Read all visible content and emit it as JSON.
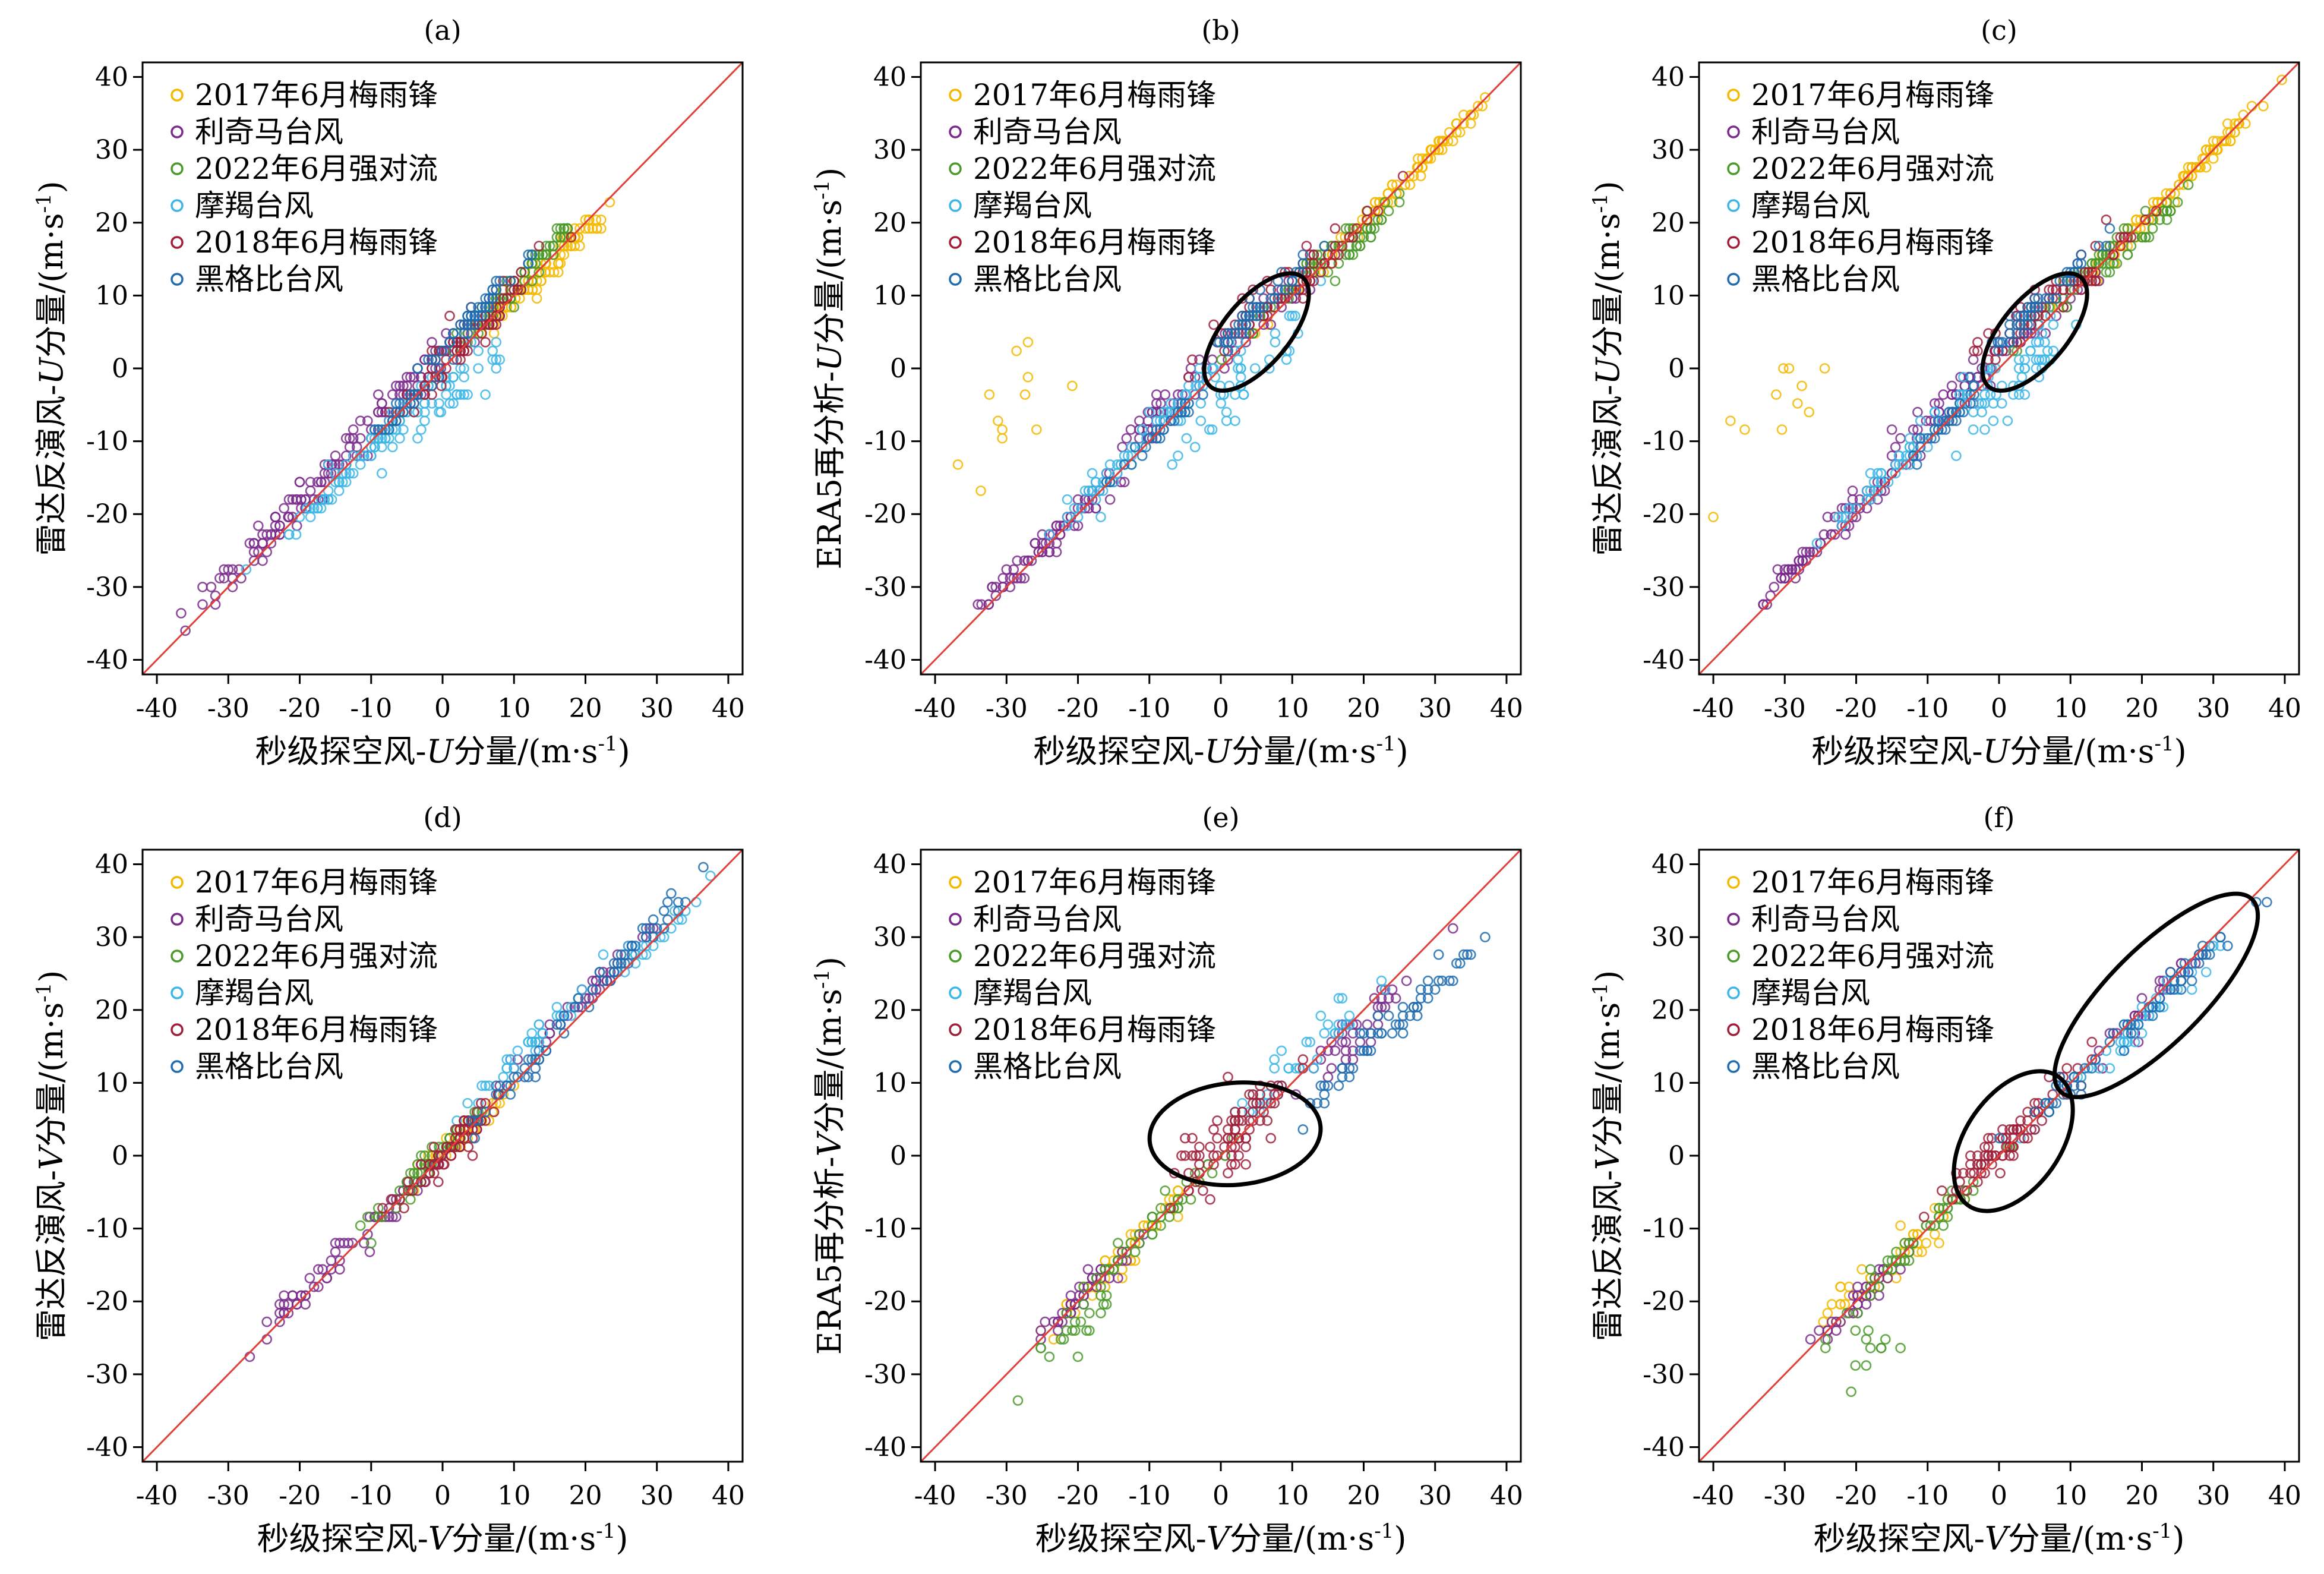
{
  "chart_data": [
    {
      "type": "scatter",
      "title": "(a)",
      "xlabel": "秒级探空风-U分量/(m·s⁻¹)",
      "ylabel": "雷达反演风-U分量/(m·s⁻¹)",
      "xlim": [
        -42,
        42
      ],
      "ylim": [
        -42,
        42
      ],
      "xticks": [
        -40,
        -30,
        -20,
        -10,
        0,
        10,
        20,
        30,
        40
      ],
      "yticks": [
        -40,
        -30,
        -20,
        -10,
        0,
        10,
        20,
        30,
        40
      ],
      "diagonal": true,
      "legend_placement": "top-left",
      "ellipses": [],
      "series": [
        {
          "name": "2017年6月梅雨锋",
          "clusters": [
            [
              10,
              10,
              3,
              0.7,
              0.6,
              40
            ],
            [
              15,
              14,
              4,
              0.75,
              0.6,
              40
            ],
            [
              18,
              18,
              2,
              0.6,
              0.5,
              30
            ]
          ]
        },
        {
          "name": "利奇马台风",
          "clusters": [
            [
              -25,
              -24,
              5,
              0.7,
              0.6,
              60
            ],
            [
              -15,
              -13,
              4,
              0.7,
              0.5,
              40
            ],
            [
              -5,
              -3,
              4,
              0.6,
              0.5,
              40
            ],
            [
              3,
              5,
              3,
              0.7,
              0.5,
              30
            ]
          ]
        },
        {
          "name": "2022年6月强对流",
          "clusters": [
            [
              8,
              9,
              4,
              0.8,
              0.5,
              50
            ],
            [
              14,
              16,
              3,
              0.8,
              0.5,
              40
            ]
          ]
        },
        {
          "name": "摩羯台风",
          "clusters": [
            [
              -14,
              -15,
              5,
              0.85,
              0.5,
              50
            ],
            [
              -6,
              -6,
              4,
              0.8,
              0.5,
              40
            ],
            [
              2,
              -3,
              4,
              0.6,
              0.5,
              40
            ]
          ]
        },
        {
          "name": "2018年6月梅雨锋",
          "clusters": [
            [
              5,
              6,
              4,
              0.7,
              0.5,
              60
            ],
            [
              -3,
              -3,
              4,
              0.7,
              0.5,
              30
            ]
          ]
        },
        {
          "name": "黑格比台风",
          "clusters": [
            [
              5,
              8,
              4,
              0.8,
              0.5,
              50
            ],
            [
              -5,
              -5,
              3,
              0.8,
              0.5,
              30
            ]
          ]
        }
      ]
    },
    {
      "type": "scatter",
      "title": "(b)",
      "xlabel": "秒级探空风-U分量/(m·s⁻¹)",
      "ylabel": "ERA5再分析-U分量/(m·s⁻¹)",
      "xlim": [
        -42,
        42
      ],
      "ylim": [
        -42,
        42
      ],
      "xticks": [
        -40,
        -30,
        -20,
        -10,
        0,
        10,
        20,
        30,
        40
      ],
      "yticks": [
        -40,
        -30,
        -20,
        -10,
        0,
        10,
        20,
        30,
        40
      ],
      "diagonal": true,
      "legend_placement": "top-left",
      "ellipses": [
        {
          "cx": 5,
          "cy": 5,
          "rx": 10,
          "ry": 4.5,
          "angle": 50
        }
      ],
      "series": [
        {
          "name": "2017年6月梅雨锋",
          "clusters": [
            [
              22,
              22,
              6,
              0.9,
              0.6,
              80
            ],
            [
              30,
              30,
              3,
              0.8,
              0.5,
              30
            ],
            [
              -30,
              -6,
              4,
              0,
              0.2,
              12
            ]
          ]
        },
        {
          "name": "利奇马台风",
          "clusters": [
            [
              -28,
              -27,
              3,
              0.8,
              0.5,
              40
            ],
            [
              -20,
              -20,
              4,
              0.7,
              0.5,
              40
            ],
            [
              -8,
              -5,
              4,
              0.6,
              0.6,
              40
            ],
            [
              5,
              6,
              4,
              0.7,
              0.5,
              30
            ]
          ]
        },
        {
          "name": "2022年6月强对流",
          "clusters": [
            [
              12,
              13,
              4,
              0.85,
              0.5,
              50
            ],
            [
              20,
              18,
              3,
              0.8,
              0.5,
              30
            ]
          ]
        },
        {
          "name": "摩羯台风",
          "clusters": [
            [
              -15,
              -14,
              4,
              0.8,
              0.5,
              40
            ],
            [
              2,
              -2,
              5,
              0.5,
              0.4,
              50
            ],
            [
              -5,
              -4,
              3,
              0.7,
              0.5,
              30
            ]
          ]
        },
        {
          "name": "2018年6月梅雨锋",
          "clusters": [
            [
              5,
              8,
              4,
              0.6,
              0.5,
              50
            ],
            [
              15,
              15,
              4,
              0.8,
              0.5,
              30
            ]
          ]
        },
        {
          "name": "黑格比台风",
          "clusters": [
            [
              5,
              8,
              4,
              0.8,
              0.5,
              50
            ],
            [
              -8,
              -8,
              3,
              0.8,
              0.5,
              30
            ]
          ]
        }
      ]
    },
    {
      "type": "scatter",
      "title": "(c)",
      "xlabel": "秒级探空风-U分量/(m·s⁻¹)",
      "ylabel": "雷达反演风-U分量/(m·s⁻¹)",
      "xlim": [
        -42,
        42
      ],
      "ylim": [
        -42,
        42
      ],
      "xticks": [
        -40,
        -30,
        -20,
        -10,
        0,
        10,
        20,
        30,
        40
      ],
      "yticks": [
        -40,
        -30,
        -20,
        -10,
        0,
        10,
        20,
        30,
        40
      ],
      "diagonal": true,
      "legend_placement": "top-left",
      "ellipses": [
        {
          "cx": 5,
          "cy": 5,
          "rx": 10,
          "ry": 4.5,
          "angle": 50
        }
      ],
      "series": [
        {
          "name": "2017年6月梅雨锋",
          "clusters": [
            [
              22,
              22,
              6,
              0.9,
              0.6,
              80
            ],
            [
              30,
              30,
              3,
              0.8,
              0.5,
              30
            ],
            [
              -30,
              -6,
              4,
              0,
              0.2,
              12
            ]
          ]
        },
        {
          "name": "利奇马台风",
          "clusters": [
            [
              -28,
              -27,
              3,
              0.8,
              0.5,
              40
            ],
            [
              -20,
              -19,
              4,
              0.7,
              0.5,
              40
            ],
            [
              -8,
              -5,
              4,
              0.6,
              0.6,
              40
            ],
            [
              5,
              6,
              4,
              0.7,
              0.5,
              30
            ]
          ]
        },
        {
          "name": "2022年6月强对流",
          "clusters": [
            [
              12,
              13,
              4,
              0.85,
              0.5,
              50
            ],
            [
              20,
              18,
              3,
              0.8,
              0.5,
              30
            ]
          ]
        },
        {
          "name": "摩羯台风",
          "clusters": [
            [
              -15,
              -14,
              4,
              0.8,
              0.5,
              40
            ],
            [
              2,
              -2,
              5,
              0.5,
              0.4,
              50
            ],
            [
              -5,
              -4,
              3,
              0.7,
              0.5,
              30
            ]
          ]
        },
        {
          "name": "2018年6月梅雨锋",
          "clusters": [
            [
              5,
              8,
              4,
              0.6,
              0.5,
              50
            ],
            [
              15,
              15,
              4,
              0.8,
              0.5,
              30
            ]
          ]
        },
        {
          "name": "黑格比台风",
          "clusters": [
            [
              5,
              8,
              4,
              0.8,
              0.5,
              50
            ],
            [
              -8,
              -8,
              3,
              0.8,
              0.5,
              30
            ]
          ]
        }
      ]
    },
    {
      "type": "scatter",
      "title": "(d)",
      "xlabel": "秒级探空风-V分量/(m·s⁻¹)",
      "ylabel": "雷达反演风-V分量/(m·s⁻¹)",
      "xlim": [
        -42,
        42
      ],
      "ylim": [
        -42,
        42
      ],
      "xticks": [
        -40,
        -30,
        -20,
        -10,
        0,
        10,
        20,
        30,
        40
      ],
      "yticks": [
        -40,
        -30,
        -20,
        -10,
        0,
        10,
        20,
        30,
        40
      ],
      "diagonal": true,
      "legend_placement": "top-left",
      "ellipses": [],
      "series": [
        {
          "name": "2017年6月梅雨锋",
          "clusters": [
            [
              2,
              2,
              3,
              0.7,
              0.5,
              50
            ]
          ]
        },
        {
          "name": "利奇马台风",
          "clusters": [
            [
              -18,
              -17,
              4,
              0.7,
              0.6,
              40
            ],
            [
              20,
              22,
              5,
              0.85,
              0.5,
              40
            ],
            [
              -6,
              -6,
              3,
              0.7,
              0.5,
              30
            ]
          ]
        },
        {
          "name": "2022年6月强对流",
          "clusters": [
            [
              -3,
              -2,
              4,
              0.8,
              0.5,
              50
            ]
          ]
        },
        {
          "name": "摩羯台风",
          "clusters": [
            [
              12,
              15,
              5,
              0.8,
              0.5,
              40
            ],
            [
              28,
              28,
              3,
              0.8,
              0.5,
              20
            ]
          ]
        },
        {
          "name": "2018年6月梅雨锋",
          "clusters": [
            [
              1,
              1,
              4,
              0.7,
              0.6,
              80
            ]
          ]
        },
        {
          "name": "黑格比台风",
          "clusters": [
            [
              25,
              27,
              5,
              0.8,
              0.5,
              40
            ],
            [
              10,
              10,
              3,
              0.7,
              0.5,
              30
            ]
          ]
        }
      ]
    },
    {
      "type": "scatter",
      "title": "(e)",
      "xlabel": "秒级探空风-V分量/(m·s⁻¹)",
      "ylabel": "ERA5再分析-V分量/(m·s⁻¹)",
      "xlim": [
        -42,
        42
      ],
      "ylim": [
        -42,
        42
      ],
      "xticks": [
        -40,
        -30,
        -20,
        -10,
        0,
        10,
        20,
        30,
        40
      ],
      "yticks": [
        -40,
        -30,
        -20,
        -10,
        0,
        10,
        20,
        30,
        40
      ],
      "diagonal": true,
      "legend_placement": "top-left",
      "ellipses": [
        {
          "cx": 2,
          "cy": 3,
          "rx": 12,
          "ry": 7,
          "angle": 5
        }
      ],
      "series": [
        {
          "name": "2017年6月梅雨锋",
          "clusters": [
            [
              -14,
              -14,
              5,
              0.8,
              0.6,
              60
            ]
          ]
        },
        {
          "name": "利奇马台风",
          "clusters": [
            [
              -18,
              -18,
              4,
              0.8,
              0.6,
              50
            ],
            [
              20,
              18,
              5,
              0.7,
              0.5,
              40
            ]
          ]
        },
        {
          "name": "2022年6月强对流",
          "clusters": [
            [
              -10,
              -10,
              5,
              0.8,
              0.6,
              50
            ],
            [
              -20,
              -24,
              3,
              0.5,
              0.4,
              20
            ]
          ]
        },
        {
          "name": "摩羯台风",
          "clusters": [
            [
              10,
              12,
              5,
              0.6,
              0.5,
              40
            ]
          ]
        },
        {
          "name": "2018年6月梅雨锋",
          "clusters": [
            [
              2,
              3,
              4,
              0.3,
              0.5,
              80
            ]
          ]
        },
        {
          "name": "黑格比台风",
          "clusters": [
            [
              20,
              15,
              5,
              0.7,
              0.5,
              40
            ],
            [
              30,
              23,
              3,
              0.8,
              0.5,
              20
            ]
          ]
        }
      ]
    },
    {
      "type": "scatter",
      "title": "(f)",
      "xlabel": "秒级探空风-V分量/(m·s⁻¹)",
      "ylabel": "雷达反演风-V分量/(m·s⁻¹)",
      "xlim": [
        -42,
        42
      ],
      "ylim": [
        -42,
        42
      ],
      "xticks": [
        -40,
        -30,
        -20,
        -10,
        0,
        10,
        20,
        30,
        40
      ],
      "yticks": [
        -40,
        -30,
        -20,
        -10,
        0,
        10,
        20,
        30,
        40
      ],
      "diagonal": true,
      "legend_placement": "top-left",
      "ellipses": [
        {
          "cx": 2,
          "cy": 2,
          "rx": 11,
          "ry": 6.5,
          "angle": 55
        },
        {
          "cx": 22,
          "cy": 22,
          "rx": 19,
          "ry": 6.5,
          "angle": 45
        }
      ],
      "series": [
        {
          "name": "2017年6月梅雨锋",
          "clusters": [
            [
              -14,
              -14,
              5,
              0.7,
              0.6,
              60
            ]
          ]
        },
        {
          "name": "利奇马台风",
          "clusters": [
            [
              -18,
              -18,
              4,
              0.8,
              0.6,
              50
            ],
            [
              20,
              20,
              5,
              0.8,
              0.5,
              40
            ]
          ]
        },
        {
          "name": "2022年6月强对流",
          "clusters": [
            [
              -10,
              -10,
              5,
              0.8,
              0.6,
              50
            ],
            [
              -20,
              -26,
              3,
              0,
              0.3,
              15
            ]
          ]
        },
        {
          "name": "摩羯台风",
          "clusters": [
            [
              20,
              18,
              6,
              0.8,
              0.5,
              50
            ]
          ]
        },
        {
          "name": "2018年6月梅雨锋",
          "clusters": [
            [
              1,
              2,
              4,
              0.7,
              0.5,
              80
            ]
          ]
        },
        {
          "name": "黑格比台风",
          "clusters": [
            [
              25,
              24,
              5,
              0.8,
              0.5,
              40
            ],
            [
              8,
              8,
              3,
              0.7,
              0.5,
              30
            ]
          ]
        }
      ]
    }
  ],
  "colors": {
    "series": [
      "#f5b800",
      "#7a2a8c",
      "#4a9a2a",
      "#3cb6e6",
      "#a01e3a",
      "#1f6cb0"
    ],
    "diagonal": "#e0403a",
    "ellipse": "#000000",
    "axis": "#000000"
  }
}
